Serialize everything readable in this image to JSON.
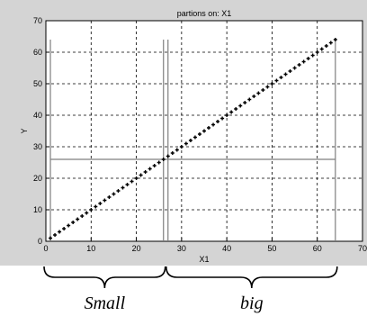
{
  "chart_data": {
    "type": "scatter",
    "title": "partions on: X1",
    "xlabel": "X1",
    "ylabel": "Y",
    "xlim": [
      0,
      70
    ],
    "ylim": [
      0,
      70
    ],
    "xticks": [
      0,
      10,
      20,
      30,
      40,
      50,
      60,
      70
    ],
    "yticks": [
      0,
      10,
      20,
      30,
      40,
      50,
      60,
      70
    ],
    "grid": true,
    "background": "#d4d4d4",
    "plot_background": "#ffffff",
    "series": [
      {
        "marker": "plus",
        "color": "#000000",
        "x_start": 1,
        "x_end": 64,
        "x_step": 1,
        "relation": "y = x"
      }
    ],
    "partition_lines": {
      "color": "#7f7f7f",
      "vertical_x": [
        1,
        26,
        27,
        64
      ],
      "vertical_y_range": [
        0,
        64
      ],
      "horizontal_y": 26,
      "horizontal_x_range": [
        1,
        64
      ]
    }
  },
  "annotations": [
    {
      "text": "Small",
      "x_range": [
        0,
        26
      ]
    },
    {
      "text": "big",
      "x_range": [
        27,
        64
      ]
    }
  ]
}
